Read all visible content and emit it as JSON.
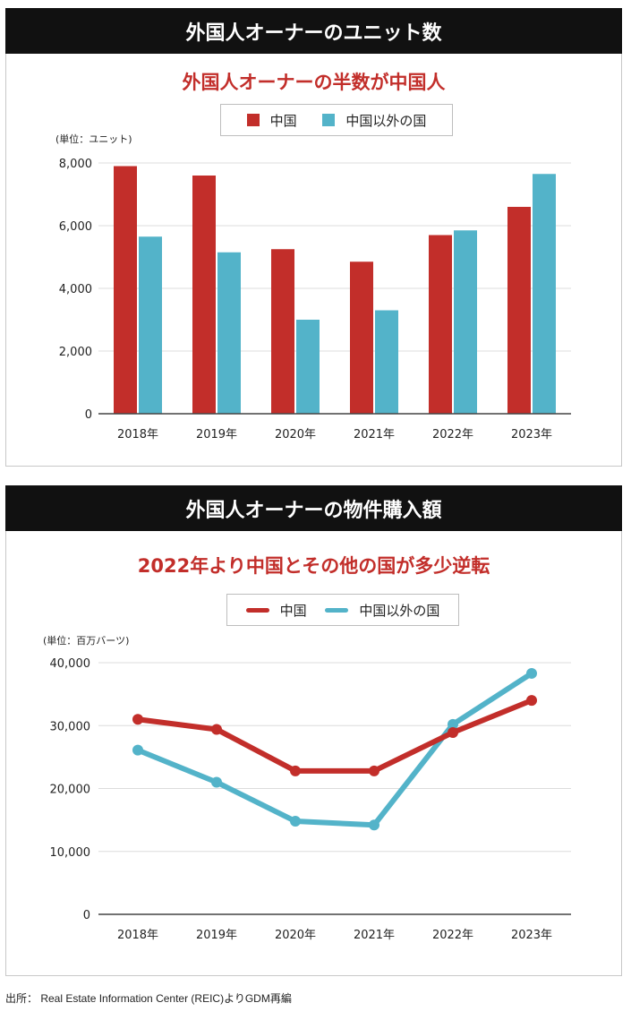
{
  "colors": {
    "china": "#c22e2a",
    "other": "#53b3c9"
  },
  "panel1": {
    "header": "外国人オーナーのユニット数",
    "subtitle": "外国人オーナーの半数が中国人",
    "unit": "(単位：ユニット)"
  },
  "panel2": {
    "header": "外国人オーナーの物件購入額",
    "subtitle": "2022年より中国とその他の国が多少逆転",
    "unit": "(単位：百万バーツ)"
  },
  "source": "出所： Real Estate Information Center (REIC)よりGDM再編",
  "chart_data": [
    {
      "type": "bar",
      "categories": [
        "2018年",
        "2019年",
        "2020年",
        "2021年",
        "2022年",
        "2023年"
      ],
      "series": [
        {
          "name": "中国",
          "values": [
            7900,
            7600,
            5250,
            4850,
            5700,
            6600
          ]
        },
        {
          "name": "中国以外の国",
          "values": [
            5650,
            5150,
            3000,
            3300,
            5850,
            7650
          ]
        }
      ],
      "title": "外国人オーナーのユニット数",
      "ylabel": "(単位：ユニット)",
      "ylim": [
        0,
        8000
      ],
      "yticks": [
        0,
        2000,
        4000,
        6000,
        8000
      ],
      "ytick_labels": [
        "0",
        "2,000",
        "4,000",
        "6,000",
        "8,000"
      ],
      "grid": true,
      "legend": "top-center"
    },
    {
      "type": "line",
      "categories": [
        "2018年",
        "2019年",
        "2020年",
        "2021年",
        "2022年",
        "2023年"
      ],
      "series": [
        {
          "name": "中国",
          "values": [
            31000,
            29400,
            22800,
            22800,
            28900,
            34000
          ]
        },
        {
          "name": "中国以外の国",
          "values": [
            26100,
            21000,
            14800,
            14200,
            30200,
            38300
          ]
        }
      ],
      "title": "外国人オーナーの物件購入額",
      "ylabel": "(単位：百万バーツ)",
      "ylim": [
        0,
        40000
      ],
      "yticks": [
        0,
        10000,
        20000,
        30000,
        40000
      ],
      "ytick_labels": [
        "0",
        "10,000",
        "20,000",
        "30,000",
        "40,000"
      ],
      "grid": true,
      "legend": "top-center"
    }
  ]
}
